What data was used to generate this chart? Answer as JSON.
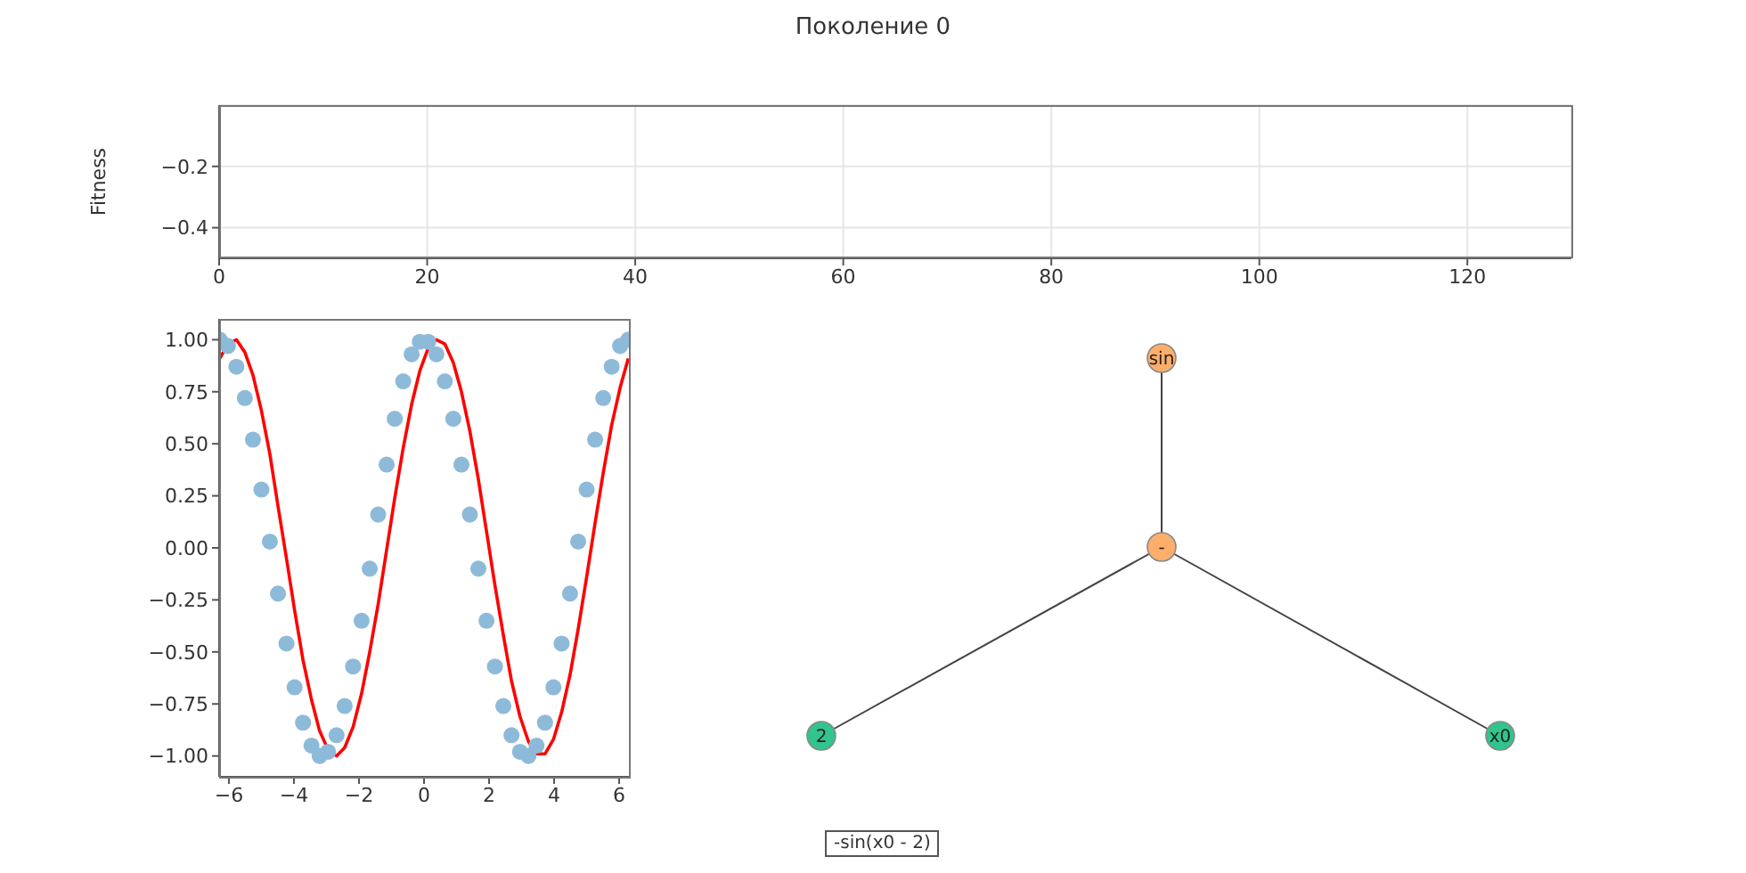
{
  "chart_data": [
    {
      "type": "line",
      "title": "Поколение 0",
      "ylabel": "Fitness",
      "xlim": [
        0,
        130
      ],
      "xticks": [
        0,
        20,
        40,
        60,
        80,
        100,
        120
      ],
      "ylim": [
        -0.5,
        0
      ],
      "yticks": [
        {
          "value": -0.2,
          "label": "−0.2"
        },
        {
          "value": -0.4,
          "label": "−0.4"
        }
      ],
      "grid": true
    },
    {
      "type": "scatter",
      "xlim": [
        -6.3,
        6.3
      ],
      "xticks": [
        {
          "value": -6,
          "label": "−6"
        },
        {
          "value": -4,
          "label": "−4"
        },
        {
          "value": -2,
          "label": "−2"
        },
        0,
        2,
        4,
        6
      ],
      "ylim": [
        -1.1,
        1.1
      ],
      "yticks": [
        {
          "value": -1,
          "label": "−1.00"
        },
        {
          "value": -0.75,
          "label": "−0.75"
        },
        {
          "value": -0.5,
          "label": "−0.50"
        },
        {
          "value": -0.25,
          "label": "−0.25"
        },
        {
          "value": 0,
          "label": "0.00"
        },
        {
          "value": 0.25,
          "label": "0.25"
        },
        {
          "value": 0.5,
          "label": "0.50"
        },
        {
          "value": 0.75,
          "label": "0.75"
        },
        {
          "value": 1,
          "label": "1.00"
        }
      ],
      "x": [
        -6.28,
        -6.03,
        -5.77,
        -5.51,
        -5.26,
        -5.0,
        -4.74,
        -4.49,
        -4.23,
        -3.98,
        -3.72,
        -3.46,
        -3.21,
        -2.95,
        -2.69,
        -2.44,
        -2.18,
        -1.92,
        -1.67,
        -1.41,
        -1.15,
        -0.9,
        -0.64,
        -0.38,
        -0.13,
        0.13,
        0.38,
        0.64,
        0.9,
        1.15,
        1.41,
        1.67,
        1.92,
        2.18,
        2.44,
        2.69,
        2.95,
        3.21,
        3.46,
        3.72,
        3.98,
        4.23,
        4.49,
        4.74,
        5.0,
        5.26,
        5.51,
        5.77,
        6.03,
        6.28
      ],
      "series": [
        {
          "type": "scatter",
          "marker": "circle",
          "color": "#8ebad9",
          "values": [
            1.0,
            0.97,
            0.87,
            0.72,
            0.52,
            0.28,
            0.03,
            -0.22,
            -0.46,
            -0.67,
            -0.84,
            -0.95,
            -1.0,
            -0.98,
            -0.9,
            -0.76,
            -0.57,
            -0.35,
            -0.1,
            0.16,
            0.4,
            0.62,
            0.8,
            0.93,
            0.99,
            0.99,
            0.93,
            0.8,
            0.62,
            0.4,
            0.16,
            -0.1,
            -0.35,
            -0.57,
            -0.76,
            -0.9,
            -0.98,
            -1.0,
            -0.95,
            -0.84,
            -0.67,
            -0.46,
            -0.22,
            0.03,
            0.28,
            0.52,
            0.72,
            0.87,
            0.97,
            1.0
          ]
        },
        {
          "type": "line",
          "marker": "none",
          "color": "#ff0000",
          "values": [
            0.91,
            0.98,
            1.0,
            0.94,
            0.83,
            0.66,
            0.45,
            0.2,
            -0.05,
            -0.3,
            -0.54,
            -0.73,
            -0.88,
            -0.97,
            -1.0,
            -0.96,
            -0.86,
            -0.7,
            -0.5,
            -0.27,
            -0.01,
            0.24,
            0.48,
            0.69,
            0.85,
            0.96,
            1.0,
            0.98,
            0.89,
            0.75,
            0.56,
            0.33,
            0.08,
            -0.18,
            -0.42,
            -0.64,
            -0.81,
            -0.93,
            -0.99,
            -0.99,
            -0.92,
            -0.79,
            -0.61,
            -0.39,
            -0.14,
            0.12,
            0.36,
            0.59,
            0.77,
            0.91
          ]
        }
      ]
    },
    {
      "type": "other",
      "annotations": [
        "sin",
        "-",
        "2",
        "x0",
        "-sin(x0 - 2)"
      ]
    }
  ]
}
